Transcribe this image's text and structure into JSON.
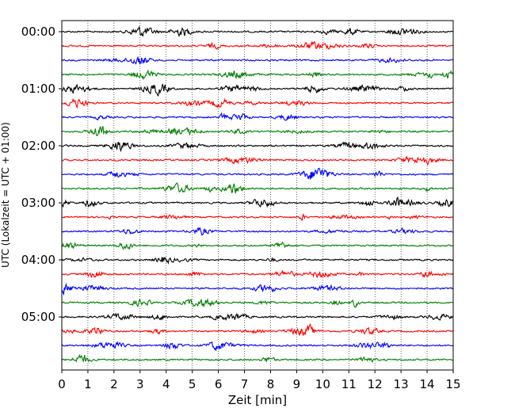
{
  "chart_data": {
    "type": "line",
    "title": "",
    "xlabel": "Zeit  [min]",
    "ylabel": "UTC (Lokalzeit = UTC + 01:00)",
    "xlim": [
      0,
      15
    ],
    "x_ticks": [
      "0",
      "1",
      "2",
      "3",
      "4",
      "5",
      "6",
      "7",
      "8",
      "9",
      "10",
      "11",
      "12",
      "13",
      "14",
      "15"
    ],
    "y_ticks": [
      "00:00",
      "01:00",
      "02:00",
      "03:00",
      "04:00",
      "05:00"
    ],
    "traces_per_hour": 4,
    "trace_interval_min": 15,
    "trace_starts": [
      "00:00",
      "00:15",
      "00:30",
      "00:45",
      "01:00",
      "01:15",
      "01:30",
      "01:45",
      "02:00",
      "02:15",
      "02:30",
      "02:45",
      "03:00",
      "03:15",
      "03:30",
      "03:45",
      "04:00",
      "04:15",
      "04:30",
      "04:45",
      "05:00",
      "05:15",
      "05:30",
      "05:45"
    ],
    "trace_color_cycle": [
      "#000000",
      "#ff0000",
      "#0000ff",
      "#007f00"
    ],
    "grid": {
      "vertical_dotted": true,
      "horizontal": false
    },
    "legend": "none"
  }
}
